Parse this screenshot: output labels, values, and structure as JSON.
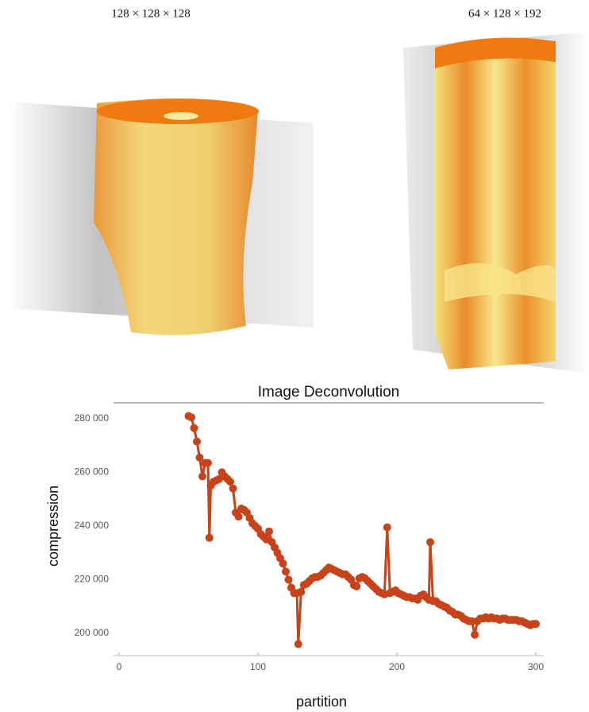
{
  "captions": [
    "128 × 128 × 128",
    "64 × 128 × 192"
  ],
  "chart_data": {
    "type": "line",
    "title": "Image Deconvolution",
    "x_label": "partition",
    "y_label": "compression",
    "color": "#c8421a",
    "grid": false,
    "xlim": [
      -4,
      305.7
    ],
    "ylim": [
      191700,
      285900
    ],
    "xticks": [
      0,
      100,
      200,
      300
    ],
    "yticks": [
      {
        "value": 200000,
        "label": "200 000"
      },
      {
        "value": 220000,
        "label": "220 000"
      },
      {
        "value": 240000,
        "label": "240 000"
      },
      {
        "value": 260000,
        "label": "260 000"
      },
      {
        "value": 280000,
        "label": "280 000"
      }
    ],
    "x": [
      50,
      52,
      54,
      56,
      58,
      60,
      62,
      64,
      65,
      66,
      68,
      70,
      72,
      74,
      76,
      78,
      80,
      82,
      84,
      86,
      88,
      90,
      92,
      94,
      96,
      98,
      100,
      102,
      104,
      106,
      108,
      110,
      112,
      114,
      116,
      118,
      120,
      122,
      124,
      126,
      128,
      129,
      131,
      133,
      135,
      137,
      139,
      141,
      143,
      145,
      147,
      149,
      151,
      153,
      155,
      157,
      159,
      161,
      163,
      165,
      167,
      169,
      171,
      173,
      175,
      177,
      179,
      181,
      183,
      185,
      187,
      189,
      191,
      193,
      195,
      197,
      199,
      201,
      203,
      205,
      207,
      209,
      211,
      213,
      215,
      217,
      219,
      221,
      223,
      224,
      226,
      228,
      230,
      232,
      234,
      236,
      238,
      240,
      242,
      244,
      246,
      248,
      250,
      252,
      254,
      256,
      258,
      260,
      262,
      264,
      266,
      268,
      270,
      272,
      274,
      276,
      278,
      280,
      282,
      284,
      286,
      288,
      290,
      292,
      294,
      296,
      298,
      300
    ],
    "values": [
      281000,
      280500,
      276500,
      271500,
      265500,
      258500,
      263500,
      263500,
      235600,
      255000,
      256500,
      257000,
      257500,
      260000,
      258500,
      257500,
      256500,
      254000,
      245000,
      243500,
      246500,
      246000,
      245000,
      243000,
      241000,
      240000,
      239000,
      237000,
      236000,
      235000,
      238000,
      234000,
      232000,
      230000,
      228000,
      226000,
      223000,
      220000,
      217000,
      215000,
      215000,
      196000,
      215500,
      218000,
      218500,
      219500,
      220500,
      221000,
      221000,
      221500,
      222500,
      223500,
      224500,
      224000,
      223500,
      223000,
      222500,
      222000,
      222000,
      221000,
      220000,
      218000,
      217500,
      220500,
      221000,
      220500,
      219500,
      218500,
      217500,
      216500,
      215500,
      215000,
      214500,
      239500,
      215000,
      215500,
      216000,
      215000,
      214500,
      214000,
      213500,
      213500,
      213000,
      213000,
      212500,
      214000,
      214500,
      213500,
      212500,
      234000,
      212000,
      212000,
      211000,
      210500,
      210000,
      209500,
      208500,
      208000,
      207000,
      207000,
      206500,
      205500,
      205000,
      204500,
      204500,
      199500,
      204500,
      205500,
      205500,
      206000,
      205500,
      206000,
      205500,
      205500,
      205000,
      205500,
      205500,
      205000,
      205000,
      205000,
      205000,
      204500,
      204500,
      204000,
      203500,
      203000,
      203500,
      203500
    ]
  }
}
